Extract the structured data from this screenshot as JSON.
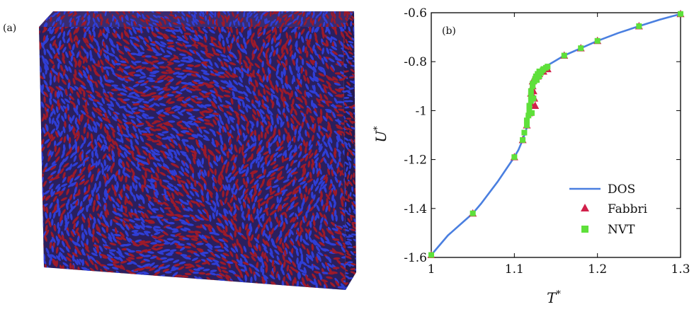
{
  "panel_a": {
    "label": "(a)",
    "colors": {
      "blue": "#2f3ed6",
      "red": "#9c1a2a",
      "dark": "#151540",
      "face_bg": "#2a1f5e"
    }
  },
  "chart_data": {
    "type": "line",
    "panel_label": "(b)",
    "xlabel": "T",
    "xlabel_sup": "*",
    "ylabel": "U",
    "ylabel_sup": "*",
    "xlim": [
      1.0,
      1.3
    ],
    "ylim": [
      -1.6,
      -0.6
    ],
    "xticks": [
      1.0,
      1.1,
      1.2,
      1.3
    ],
    "xtick_labels": [
      "1",
      "1.1",
      "1.2",
      "1.3"
    ],
    "yticks": [
      -1.6,
      -1.4,
      -1.2,
      -1.0,
      -0.8,
      -0.6
    ],
    "ytick_labels": [
      "-1.6",
      "-1.4",
      "-1.2",
      "-1",
      "-0.8",
      "-0.6"
    ],
    "grid": false,
    "legend_position": "bottom-right",
    "series": [
      {
        "name": "DOS",
        "kind": "line",
        "color": "#4a7fe0",
        "x": [
          1.0,
          1.02,
          1.04,
          1.05,
          1.06,
          1.08,
          1.09,
          1.1,
          1.105,
          1.11,
          1.115,
          1.118,
          1.12,
          1.122,
          1.124,
          1.126,
          1.128,
          1.13,
          1.132,
          1.135,
          1.14,
          1.15,
          1.16,
          1.18,
          1.2,
          1.225,
          1.25,
          1.275,
          1.3
        ],
        "y": [
          -1.59,
          -1.51,
          -1.45,
          -1.42,
          -1.38,
          -1.29,
          -1.24,
          -1.19,
          -1.16,
          -1.12,
          -1.07,
          -1.02,
          -0.97,
          -0.92,
          -0.89,
          -0.87,
          -0.855,
          -0.845,
          -0.835,
          -0.825,
          -0.815,
          -0.795,
          -0.775,
          -0.745,
          -0.715,
          -0.683,
          -0.655,
          -0.628,
          -0.605
        ]
      },
      {
        "name": "Fabbri",
        "kind": "scatter",
        "marker": "triangle",
        "color": "#d1204a",
        "x": [
          1.0,
          1.05,
          1.1,
          1.11,
          1.115,
          1.118,
          1.12,
          1.12,
          1.122,
          1.122,
          1.123,
          1.124,
          1.125,
          1.126,
          1.128,
          1.13,
          1.135,
          1.14,
          1.16,
          1.18,
          1.2,
          1.25,
          1.3
        ],
        "y": [
          -1.59,
          -1.42,
          -1.19,
          -1.12,
          -1.06,
          -1.01,
          -0.97,
          -0.93,
          -0.9,
          -0.88,
          -0.92,
          -0.95,
          -0.98,
          -0.87,
          -0.86,
          -0.85,
          -0.84,
          -0.83,
          -0.775,
          -0.745,
          -0.715,
          -0.655,
          -0.605
        ]
      },
      {
        "name": "NVT",
        "kind": "scatter",
        "marker": "square",
        "color": "#5ee03a",
        "x": [
          1.0,
          1.05,
          1.1,
          1.11,
          1.112,
          1.115,
          1.115,
          1.117,
          1.118,
          1.118,
          1.12,
          1.12,
          1.12,
          1.121,
          1.122,
          1.122,
          1.123,
          1.124,
          1.125,
          1.126,
          1.127,
          1.128,
          1.13,
          1.13,
          1.132,
          1.134,
          1.135,
          1.138,
          1.14,
          1.16,
          1.18,
          1.2,
          1.25,
          1.3
        ],
        "y": [
          -1.59,
          -1.42,
          -1.19,
          -1.12,
          -1.09,
          -1.06,
          -1.04,
          -1.02,
          -1.0,
          -0.98,
          -0.96,
          -0.94,
          -0.92,
          -1.01,
          -0.9,
          -0.89,
          -0.95,
          -0.88,
          -0.87,
          -0.86,
          -0.875,
          -0.85,
          -0.86,
          -0.84,
          -0.845,
          -0.835,
          -0.83,
          -0.825,
          -0.82,
          -0.775,
          -0.745,
          -0.715,
          -0.655,
          -0.605
        ]
      }
    ]
  }
}
